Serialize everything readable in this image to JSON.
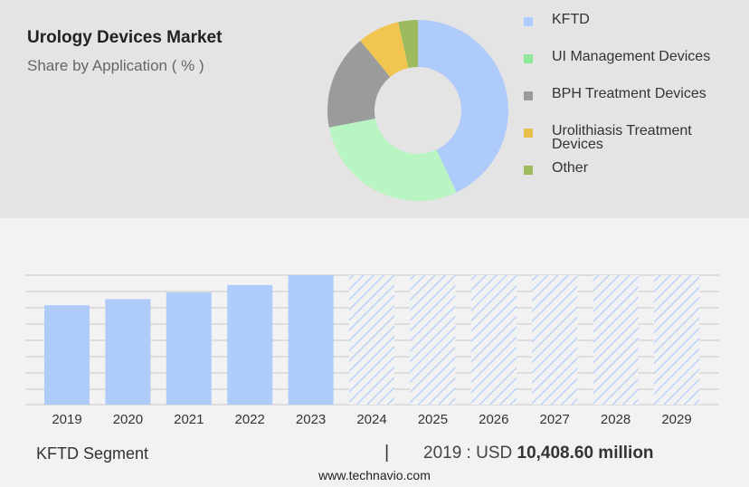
{
  "header": {
    "title": "Urology Devices Market",
    "subtitle": "Share by Application ( % )"
  },
  "legend": [
    {
      "label": "KFTD",
      "color": "#aecbfa"
    },
    {
      "label": "UI Management Devices",
      "color": "#8ee89b"
    },
    {
      "label": "BPH Treatment Devices",
      "color": "#9b9b9b"
    },
    {
      "label": "Urolithiasis Treatment Devices",
      "color": "#e6c04a"
    },
    {
      "label": "Other",
      "color": "#9dbb5e"
    }
  ],
  "footer": {
    "segment": "KFTD Segment",
    "separator": "|",
    "year_prefix": "2019 : USD ",
    "value": "10,408.60 million"
  },
  "source": "www.technavio.com",
  "chart_data": [
    {
      "type": "pie",
      "title": "Share by Application ( % )",
      "categories": [
        "KFTD",
        "UI Management Devices",
        "BPH Treatment Devices",
        "Urolithiasis Treatment Devices",
        "Other"
      ],
      "values": [
        43,
        29,
        17,
        7.5,
        3.5
      ],
      "colors": [
        "#aecbfa",
        "#b9f5c3",
        "#9b9b9b",
        "#f0c550",
        "#9dbb5e"
      ],
      "donut": true
    },
    {
      "type": "bar",
      "categories": [
        "2019",
        "2020",
        "2021",
        "2022",
        "2023",
        "2024",
        "2025",
        "2026",
        "2027",
        "2028",
        "2029"
      ],
      "values": [
        10408.6,
        11060,
        11760,
        12530,
        13560,
        null,
        null,
        null,
        null,
        null,
        null
      ],
      "forecast_categories": [
        "2024",
        "2025",
        "2026",
        "2027",
        "2028",
        "2029"
      ],
      "ylim": [
        0,
        13560
      ],
      "bar_color": "#aecbfa",
      "grid": true
    }
  ]
}
